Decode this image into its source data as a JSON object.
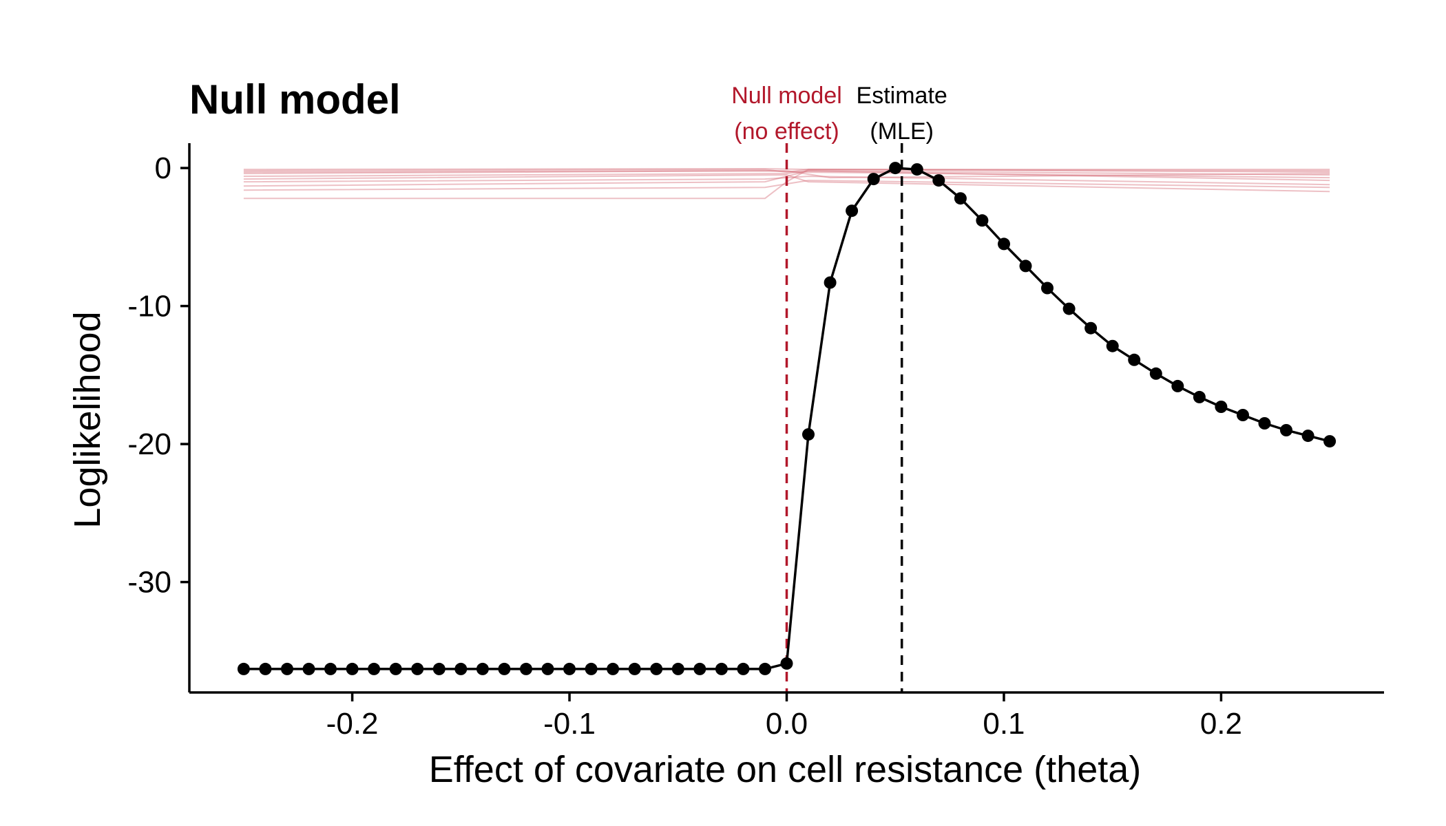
{
  "chart_data": {
    "type": "line",
    "title": "Null model",
    "xlabel": "Effect of covariate on cell resistance (theta)",
    "ylabel": "Loglikelihood",
    "xlim": [
      -0.275,
      0.275
    ],
    "ylim": [
      -38,
      1.8
    ],
    "x_ticks": [
      -0.2,
      -0.1,
      0.0,
      0.1,
      0.2
    ],
    "x_tick_labels": [
      "-0.2",
      "-0.1",
      "0.0",
      "0.1",
      "0.2"
    ],
    "y_ticks": [
      0,
      -10,
      -20,
      -30
    ],
    "y_tick_labels": [
      "0",
      "-10",
      "-20",
      "-30"
    ],
    "grid": false,
    "legend": "none",
    "colors": {
      "main": "#000000",
      "null_line": "#b2182b",
      "bootstrap": "#d6747f"
    },
    "vlines": [
      {
        "x": 0.0,
        "style": "dashed",
        "color": "#b2182b",
        "label_line1": "Null model",
        "label_line2": "(no effect)"
      },
      {
        "x": 0.053,
        "style": "dashed",
        "color": "#000000",
        "label_line1": "Estimate",
        "label_line2": "(MLE)"
      }
    ],
    "series": [
      {
        "role": "profile-likelihood",
        "x": [
          -0.25,
          -0.24,
          -0.23,
          -0.22,
          -0.21,
          -0.2,
          -0.19,
          -0.18,
          -0.17,
          -0.16,
          -0.15,
          -0.14,
          -0.13,
          -0.12,
          -0.11,
          -0.1,
          -0.09,
          -0.08,
          -0.07,
          -0.06,
          -0.05,
          -0.04,
          -0.03,
          -0.02,
          -0.01,
          0.0,
          0.01,
          0.02,
          0.03,
          0.04,
          0.05,
          0.06,
          0.07,
          0.08,
          0.09,
          0.1,
          0.11,
          0.12,
          0.13,
          0.14,
          0.15,
          0.16,
          0.17,
          0.18,
          0.19,
          0.2,
          0.21,
          0.22,
          0.23,
          0.24,
          0.25
        ],
        "y": [
          -36.3,
          -36.3,
          -36.3,
          -36.3,
          -36.3,
          -36.3,
          -36.3,
          -36.3,
          -36.3,
          -36.3,
          -36.3,
          -36.3,
          -36.3,
          -36.3,
          -36.3,
          -36.3,
          -36.3,
          -36.3,
          -36.3,
          -36.3,
          -36.3,
          -36.3,
          -36.3,
          -36.3,
          -36.3,
          -35.9,
          -19.3,
          -8.3,
          -3.1,
          -0.8,
          0.0,
          -0.1,
          -0.9,
          -2.2,
          -3.8,
          -5.5,
          -7.1,
          -8.7,
          -10.2,
          -11.6,
          -12.9,
          -13.9,
          -14.9,
          -15.8,
          -16.6,
          -17.3,
          -17.9,
          -18.5,
          -19.0,
          -19.4,
          -19.8
        ]
      },
      {
        "role": "bootstrap",
        "x": [
          -0.25,
          -0.01,
          0.0,
          0.01,
          0.25
        ],
        "y": [
          -2.2,
          -2.2,
          -1.0,
          -0.1,
          -0.3
        ]
      },
      {
        "role": "bootstrap",
        "x": [
          -0.25,
          -0.01,
          0.01,
          0.25
        ],
        "y": [
          -1.3,
          -1.0,
          -0.2,
          -0.5
        ]
      },
      {
        "role": "bootstrap",
        "x": [
          -0.25,
          0.0,
          0.01,
          0.25
        ],
        "y": [
          -0.8,
          -0.5,
          -1.0,
          -1.7
        ]
      },
      {
        "role": "bootstrap",
        "x": [
          -0.25,
          -0.01,
          0.01,
          0.25
        ],
        "y": [
          -0.4,
          -0.2,
          -0.3,
          -0.7
        ]
      },
      {
        "role": "bootstrap",
        "x": [
          -0.25,
          -0.01,
          0.0,
          0.01,
          0.25
        ],
        "y": [
          -0.2,
          -0.1,
          -0.3,
          -0.1,
          -0.1
        ]
      },
      {
        "role": "bootstrap",
        "x": [
          -0.25,
          0.0,
          0.01,
          0.25
        ],
        "y": [
          -0.6,
          -0.4,
          -0.2,
          -0.9
        ]
      },
      {
        "role": "bootstrap",
        "x": [
          -0.25,
          -0.01,
          0.01,
          0.25
        ],
        "y": [
          -1.0,
          -0.8,
          -0.6,
          -1.2
        ]
      },
      {
        "role": "bootstrap",
        "x": [
          -0.25,
          -0.01,
          0.01,
          0.25
        ],
        "y": [
          -0.1,
          -0.05,
          -0.1,
          -0.2
        ]
      },
      {
        "role": "bootstrap",
        "x": [
          -0.25,
          0.0,
          0.02,
          0.25
        ],
        "y": [
          -0.3,
          -0.2,
          -0.7,
          -0.4
        ]
      },
      {
        "role": "bootstrap",
        "x": [
          -0.25,
          -0.01,
          0.01,
          0.25
        ],
        "y": [
          -1.6,
          -1.4,
          -0.9,
          -1.4
        ]
      }
    ]
  }
}
